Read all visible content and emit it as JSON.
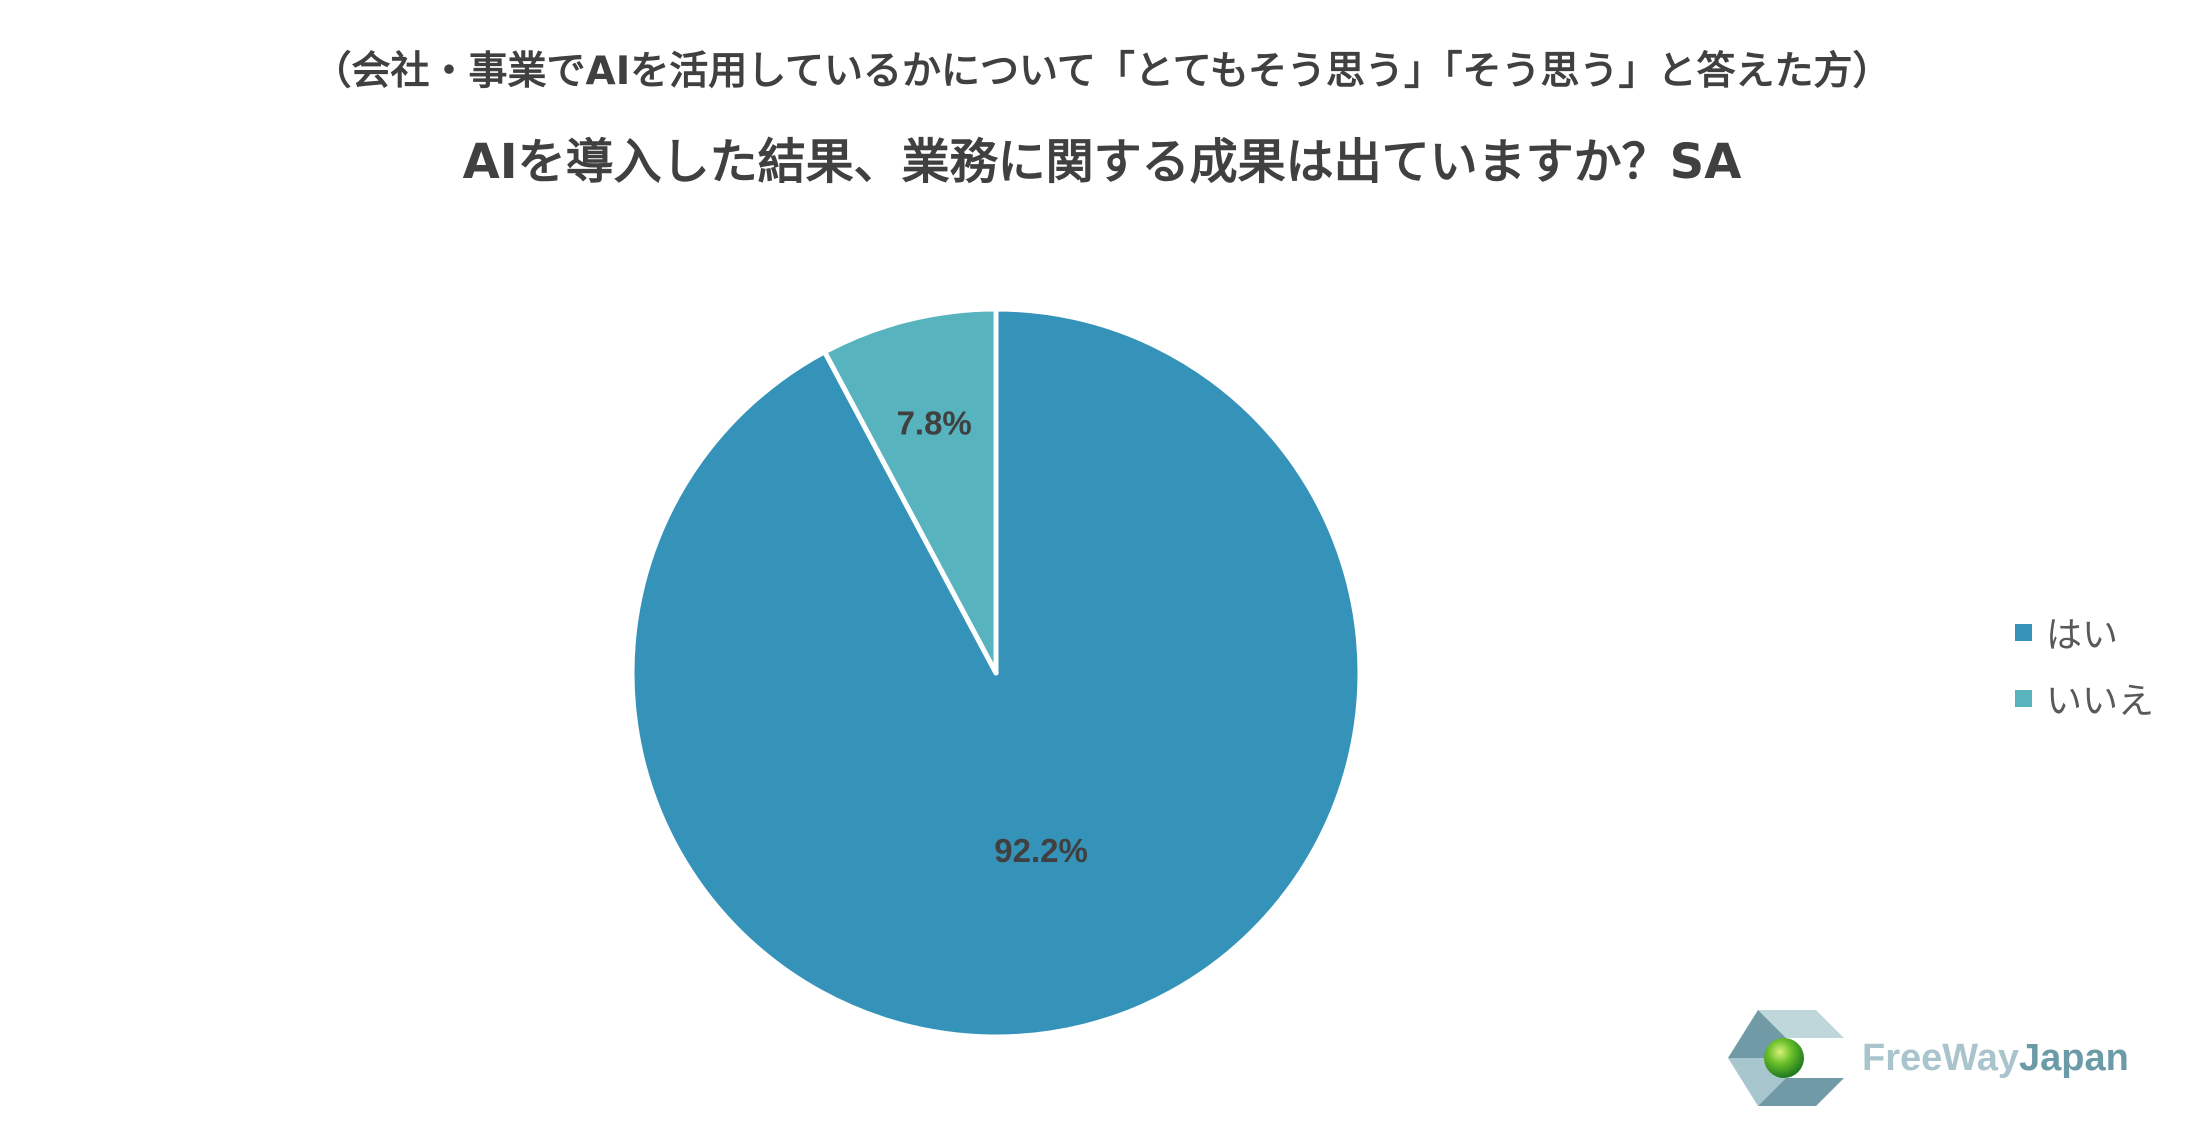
{
  "header": {
    "subtitle": "（会社・事業でAIを活用しているかについて「とてもそう思う」「そう思う」と答えた方）",
    "title": "AIを導入した結果、業務に関する成果は出ていますか？SA"
  },
  "chart_data": {
    "type": "pie",
    "title": "AIを導入した結果、業務に関する成果は出ていますか？SA",
    "subtitle": "（会社・事業でAIを活用しているかについて「とてもそう思う」「そう思う」と答えた方）",
    "categories": [
      "はい",
      "いいえ"
    ],
    "values": [
      92.2,
      7.8
    ],
    "labels": [
      "92.2%",
      "7.8%"
    ],
    "colors": [
      "#3592B9",
      "#57B4BE"
    ],
    "start_angle": "12 o'clock",
    "direction": "clockwise",
    "legend_position": "right"
  },
  "legend": {
    "items": [
      {
        "label": "はい",
        "color": "#3592B9"
      },
      {
        "label": "いいえ",
        "color": "#57B4BE"
      }
    ]
  },
  "brand": {
    "name_part1": "FreeWay",
    "name_part2": "Japan",
    "color_part1": "#A9C4CC",
    "color_part2": "#6C9BA8"
  }
}
